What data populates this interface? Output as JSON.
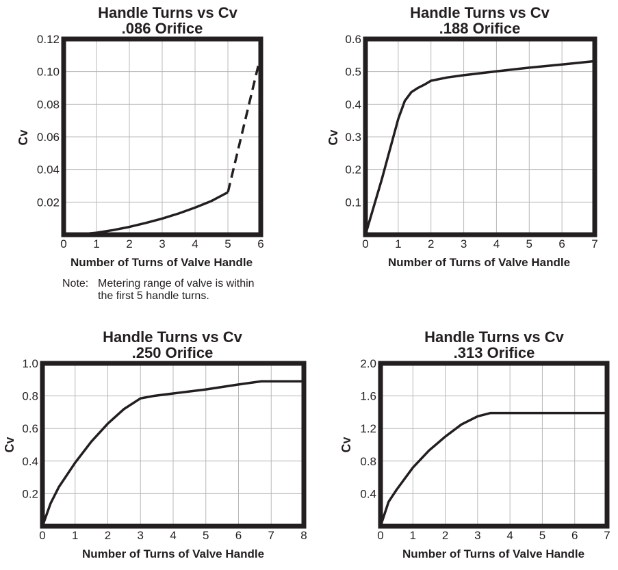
{
  "chart_data": [
    {
      "type": "line",
      "title": "Handle Turns vs Cv",
      "subtitle": ".086 Orifice",
      "xlabel": "Number of Turns of Valve Handle",
      "ylabel": "Cv",
      "xlim": [
        0,
        6
      ],
      "ylim": [
        0,
        0.12
      ],
      "x_ticks": [
        "0",
        "1",
        "2",
        "3",
        "4",
        "5",
        "6"
      ],
      "y_ticks": [
        "0.02",
        "0.04",
        "0.06",
        "0.08",
        "0.10",
        "0.12"
      ],
      "grid": true,
      "note_prefix": "Note:",
      "note_lines": [
        "Metering range of valve is within",
        "the first 5 handle turns."
      ],
      "series": [
        {
          "style": "solid",
          "x": [
            0,
            0.5,
            1,
            1.5,
            2,
            2.5,
            3,
            3.5,
            4,
            4.5,
            5
          ],
          "y": [
            0,
            0.0002,
            0.0012,
            0.0028,
            0.0048,
            0.0072,
            0.0099,
            0.013,
            0.0166,
            0.0207,
            0.026
          ]
        },
        {
          "style": "dashed",
          "x": [
            5,
            6
          ],
          "y": [
            0.026,
            0.11
          ]
        }
      ]
    },
    {
      "type": "line",
      "title": "Handle Turns vs Cv",
      "subtitle": ".188 Orifice",
      "xlabel": "Number of Turns of Valve Handle",
      "ylabel": "Cv",
      "xlim": [
        0,
        7
      ],
      "ylim": [
        0,
        0.6
      ],
      "x_ticks": [
        "0",
        "1",
        "2",
        "3",
        "4",
        "5",
        "6",
        "7"
      ],
      "y_ticks": [
        "0.1",
        "0.2",
        "0.3",
        "0.4",
        "0.5",
        "0.6"
      ],
      "grid": true,
      "series": [
        {
          "style": "solid",
          "x": [
            0,
            0.5,
            1,
            1.2,
            1.4,
            1.6,
            1.8,
            2,
            2.5,
            3,
            4,
            5,
            6,
            7
          ],
          "y": [
            0,
            0.17,
            0.355,
            0.41,
            0.437,
            0.45,
            0.46,
            0.472,
            0.482,
            0.489,
            0.501,
            0.512,
            0.522,
            0.532
          ]
        }
      ]
    },
    {
      "type": "line",
      "title": "Handle Turns vs Cv",
      "subtitle": ".250 Orifice",
      "xlabel": "Number of Turns of Valve Handle",
      "ylabel": "Cv",
      "xlim": [
        0,
        8
      ],
      "ylim": [
        0,
        1.0
      ],
      "x_ticks": [
        "0",
        "1",
        "2",
        "3",
        "4",
        "5",
        "6",
        "7",
        "8"
      ],
      "y_ticks": [
        "0.2",
        "0.4",
        "0.6",
        "0.8",
        "1.0"
      ],
      "grid": true,
      "series": [
        {
          "style": "solid",
          "x": [
            0,
            0.25,
            0.5,
            1,
            1.5,
            2,
            2.5,
            3,
            3.4,
            4,
            5,
            6,
            6.7,
            7,
            8
          ],
          "y": [
            0,
            0.14,
            0.24,
            0.39,
            0.52,
            0.63,
            0.72,
            0.785,
            0.8,
            0.815,
            0.84,
            0.87,
            0.89,
            0.89,
            0.89
          ]
        }
      ]
    },
    {
      "type": "line",
      "title": "Handle Turns vs Cv",
      "subtitle": ".313 Orifice",
      "xlabel": "Number of Turns of Valve Handle",
      "ylabel": "Cv",
      "xlim": [
        0,
        7
      ],
      "ylim": [
        0,
        2.0
      ],
      "x_ticks": [
        "0",
        "1",
        "2",
        "3",
        "4",
        "5",
        "6",
        "7"
      ],
      "y_ticks": [
        "0.4",
        "0.8",
        "1.2",
        "1.6",
        "2.0"
      ],
      "grid": true,
      "series": [
        {
          "style": "solid",
          "x": [
            0,
            0.25,
            0.5,
            1,
            1.5,
            2,
            2.5,
            3,
            3.4,
            4,
            5,
            6,
            7
          ],
          "y": [
            0,
            0.3,
            0.45,
            0.72,
            0.93,
            1.1,
            1.25,
            1.35,
            1.39,
            1.39,
            1.39,
            1.39,
            1.39
          ]
        }
      ]
    }
  ]
}
